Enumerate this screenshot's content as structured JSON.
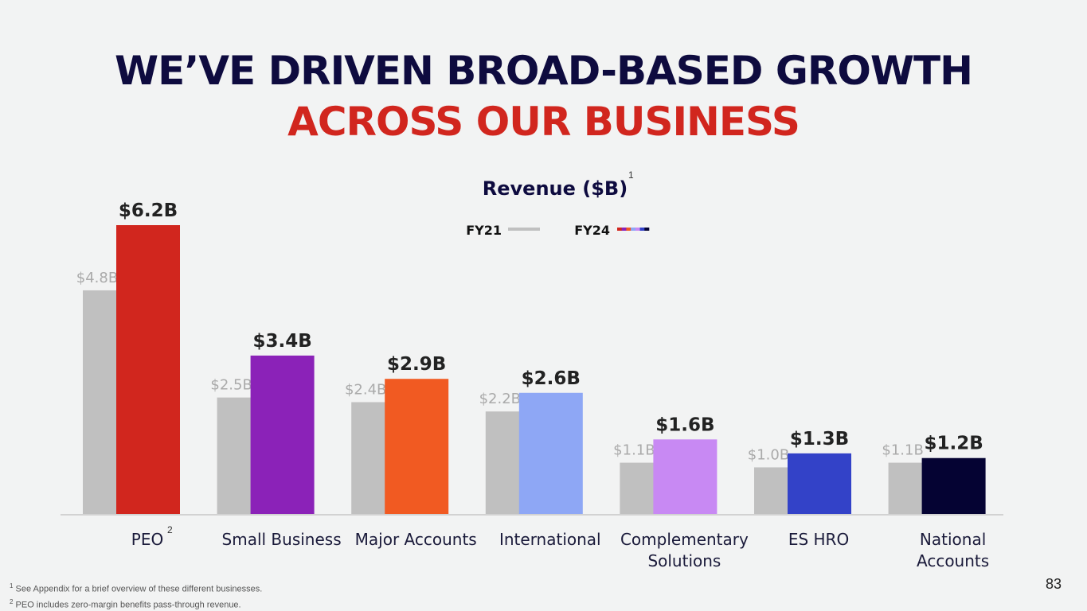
{
  "slide": {
    "title_line1": "WE’VE DRIVEN BROAD-BASED GROWTH",
    "title_line2": "ACROSS OUR BUSINESS",
    "page_number": "83",
    "footnotes": [
      {
        "mark": "1",
        "text": "See Appendix for a brief overview of these different businesses."
      },
      {
        "mark": "2",
        "text": "PEO includes zero-margin benefits pass-through revenue."
      }
    ]
  },
  "chart_data": {
    "type": "bar",
    "title": "Revenue ($B)",
    "title_footnote": "1",
    "ylim": [
      0,
      6.2
    ],
    "grid": false,
    "legend_placement": "top-center",
    "categories": [
      {
        "label": [
          "PEO"
        ],
        "footnote": "2"
      },
      {
        "label": [
          "Small Business"
        ]
      },
      {
        "label": [
          "Major Accounts"
        ]
      },
      {
        "label": [
          "International"
        ]
      },
      {
        "label": [
          "Complementary",
          "Solutions"
        ]
      },
      {
        "label": [
          "ES HRO"
        ]
      },
      {
        "label": [
          "National",
          "Accounts"
        ]
      }
    ],
    "series": [
      {
        "name": "FY21",
        "values": [
          4.8,
          2.5,
          2.4,
          2.2,
          1.1,
          1.0,
          1.1
        ],
        "labels": [
          "$4.8B",
          "$2.5B",
          "$2.4B",
          "$2.2B",
          "$1.1B",
          "$1.0B",
          "$1.1B"
        ],
        "colors": [
          "#c0c0c0"
        ]
      },
      {
        "name": "FY24",
        "values": [
          6.2,
          3.4,
          2.9,
          2.6,
          1.6,
          1.3,
          1.2
        ],
        "labels": [
          "$6.2B",
          "$3.4B",
          "$2.9B",
          "$2.6B",
          "$1.6B",
          "$1.3B",
          "$1.2B"
        ],
        "colors": [
          "#d1261e",
          "#8b22b8",
          "#f15a22",
          "#8ea7f5",
          "#c889f3",
          "#3342c8",
          "#050333"
        ]
      }
    ]
  }
}
